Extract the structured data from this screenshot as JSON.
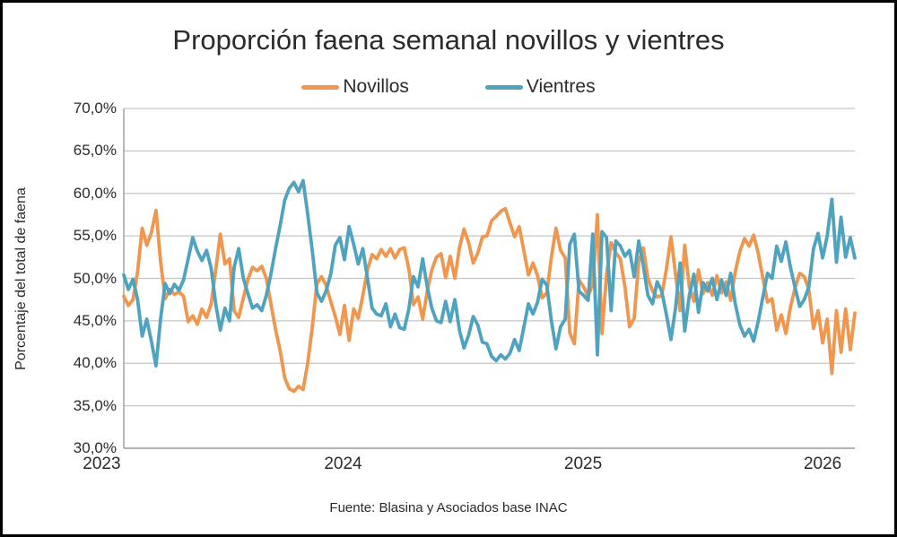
{
  "window": {
    "title": "Proporción faena semanal novillos y vientres"
  },
  "legend": [
    {
      "label": "Novillos",
      "color": "#F0964F"
    },
    {
      "label": "Vientres",
      "color": "#4FA3BE"
    }
  ],
  "footer": {
    "source": "Fuente: Blasina y Asociados base INAC"
  },
  "colors": {
    "novillos": "#F0964F",
    "vientres": "#4FA3BE",
    "gridline": "#C6C6C6",
    "axis_line": "#9B9B9B",
    "text": "#2B2B2B"
  },
  "chart_data": {
    "type": "line",
    "title": "Proporción faena semanal novillos y vientres",
    "xlabel": "",
    "ylabel": "Porcentaje del total de faena",
    "ylim": [
      30,
      70
    ],
    "ytick_step": 5,
    "ytick_labels": [
      "70,0%",
      "65,0%",
      "60,0%",
      "55,0%",
      "50,0%",
      "45,0%",
      "40,0%",
      "35,0%",
      "30,0%"
    ],
    "grid": true,
    "legend_position": "top",
    "x_unit": "week (2023-02 a 2026-02)",
    "year_ticks": [
      {
        "label": "2023",
        "week": -4.8
      },
      {
        "label": "2024",
        "week": 47.7
      },
      {
        "label": "2025",
        "week": 99.9
      },
      {
        "label": "2026",
        "week": 152.0
      }
    ],
    "series": [
      {
        "name": "Novillos",
        "color": "#F0964F",
        "values": [
          47.9,
          46.8,
          47.5,
          50.8,
          55.9,
          53.9,
          55.4,
          58.0,
          52.0,
          47.6,
          48.7,
          48.1,
          48.4,
          47.9,
          44.9,
          45.6,
          44.6,
          46.4,
          45.4,
          47.0,
          51.0,
          55.2,
          51.7,
          52.3,
          46.2,
          45.4,
          47.7,
          49.9,
          51.3,
          50.9,
          51.4,
          50.0,
          47.0,
          44.0,
          41.5,
          38.3,
          37.0,
          36.7,
          37.3,
          36.9,
          40.0,
          44.3,
          49.4,
          50.2,
          49.2,
          47.3,
          45.5,
          43.4,
          46.8,
          42.7,
          46.4,
          45.3,
          48.0,
          51.0,
          52.8,
          52.3,
          53.4,
          52.6,
          53.5,
          52.4,
          53.4,
          53.6,
          51.1,
          46.9,
          47.8,
          45.2,
          48.5,
          51.0,
          52.5,
          52.9,
          50.1,
          52.6,
          50.0,
          53.6,
          55.8,
          54.2,
          51.8,
          53.0,
          54.9,
          55.0,
          56.8,
          57.3,
          57.9,
          58.2,
          56.5,
          54.9,
          56.1,
          53.3,
          50.4,
          51.8,
          50.3,
          47.7,
          48.3,
          52.5,
          55.9,
          53.3,
          52.4,
          43.6,
          42.3,
          49.8,
          49.0,
          47.9,
          49.3,
          57.5,
          43.5,
          50.5,
          54.2,
          53.0,
          52.3,
          49.0,
          44.3,
          45.3,
          52.0,
          53.6,
          50.0,
          48.5,
          47.8,
          48.0,
          51.0,
          54.9,
          50.5,
          46.2,
          53.9,
          49.0,
          47.3,
          51.0,
          48.2,
          49.5,
          48.0,
          50.3,
          48.3,
          49.6,
          47.4,
          50.8,
          53.2,
          54.7,
          53.8,
          55.1,
          52.9,
          50.0,
          47.2,
          47.6,
          43.9,
          45.7,
          43.5,
          46.6,
          48.9,
          50.6,
          50.2,
          48.7,
          44.1,
          46.2,
          42.4,
          45.2,
          38.8,
          46.2,
          41.3,
          46.4,
          41.6,
          45.9
        ]
      },
      {
        "name": "Vientres",
        "color": "#4FA3BE",
        "values": [
          50.4,
          48.7,
          49.9,
          47.5,
          43.2,
          45.2,
          42.6,
          39.7,
          45.2,
          49.4,
          48.2,
          49.3,
          48.6,
          49.8,
          52.3,
          54.8,
          53.2,
          52.1,
          53.3,
          51.2,
          47.0,
          43.9,
          46.5,
          45.0,
          51.3,
          53.5,
          50.0,
          48.2,
          46.5,
          46.9,
          46.2,
          48.0,
          50.5,
          53.5,
          56.2,
          59.2,
          60.6,
          61.3,
          60.2,
          61.5,
          57.6,
          53.2,
          48.3,
          47.3,
          48.5,
          50.5,
          53.9,
          54.8,
          52.2,
          56.1,
          54.0,
          51.7,
          53.5,
          50.0,
          46.5,
          45.8,
          45.6,
          47.0,
          44.3,
          45.8,
          44.2,
          44.0,
          46.4,
          50.2,
          49.0,
          52.3,
          49.0,
          46.5,
          45.0,
          44.8,
          47.3,
          44.9,
          47.5,
          43.9,
          41.8,
          43.3,
          45.5,
          44.5,
          42.5,
          42.3,
          40.8,
          40.3,
          41.0,
          40.5,
          41.2,
          42.8,
          41.5,
          44.2,
          47.0,
          45.8,
          47.2,
          49.9,
          49.2,
          45.0,
          41.7,
          44.3,
          45.2,
          54.0,
          55.2,
          48.5,
          48.0,
          47.4,
          55.2,
          41.0,
          55.5,
          54.8,
          46.2,
          54.4,
          53.8,
          52.6,
          53.3,
          50.2,
          54.4,
          51.5,
          48.0,
          47.0,
          49.6,
          48.5,
          45.8,
          42.8,
          46.5,
          51.8,
          43.8,
          48.0,
          50.5,
          46.0,
          49.5,
          48.5,
          50.0,
          47.5,
          49.8,
          48.0,
          50.6,
          47.0,
          44.5,
          43.2,
          44.0,
          42.6,
          45.0,
          47.8,
          50.6,
          50.0,
          53.8,
          52.0,
          54.3,
          51.3,
          48.9,
          46.7,
          47.5,
          49.0,
          53.5,
          55.3,
          52.4,
          55.0,
          59.3,
          51.9,
          57.2,
          52.5,
          54.8,
          52.4
        ]
      }
    ],
    "source": "Fuente: Blasina y Asociados base INAC"
  }
}
